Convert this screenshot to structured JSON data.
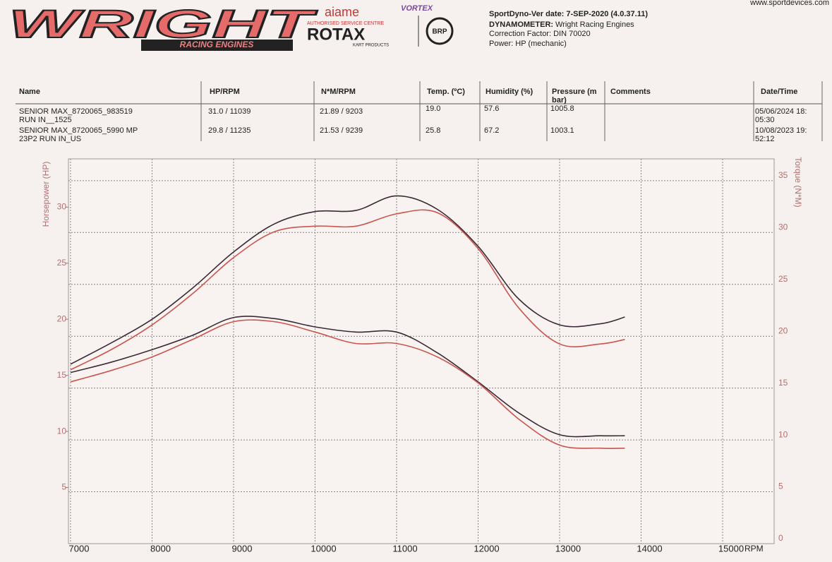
{
  "header": {
    "logo": {
      "brand": "WRIGHT",
      "tagline": "RACING ENGINES",
      "partner": "aiame",
      "partner2": "VORTEX",
      "centre": "AUTHORISED SERVICE CENTRE",
      "rotax": "ROTAX",
      "kart": "KART PRODUCTS",
      "brp": "BRP"
    },
    "info": {
      "version": "SportDyno-Ver date: 7-SEP-2020 (4.0.37.11)",
      "dyno_label": "DYNAMOMETER:",
      "dyno": "Wright Racing Engines",
      "correction": "Correction Factor: DIN 70020",
      "power": "Power: HP (mechanic)"
    },
    "website": "www.sportdevices.com"
  },
  "table": {
    "headers": [
      [
        "Name"
      ],
      [
        "HP/RPM"
      ],
      [
        "N*M/RPM"
      ],
      [
        "Temp. (ºC)"
      ],
      [
        "Humidity (%)"
      ],
      [
        "Pressure (m",
        "bar)"
      ],
      [
        "Comments"
      ],
      [
        "Date/Time"
      ]
    ],
    "rows": [
      {
        "name": [
          "SENIOR MAX_8720065_983519",
          "RUN IN__1525"
        ],
        "hp_rpm": "31.0 / 11039",
        "nm_rpm": "21.89 / 9203",
        "temp": "19.0",
        "humidity": "57.6",
        "pressure": "1005.8",
        "datetime": [
          "05/06/2024 18:",
          "05:30"
        ]
      },
      {
        "name": [
          "SENIOR MAX_8720065_5990 MP",
          "23P2 RUN IN_US"
        ],
        "hp_rpm": "29.8 / 11235",
        "nm_rpm": "21.53 / 9239",
        "temp": "25.8",
        "humidity": "67.2",
        "pressure": "1003.1",
        "datetime": [
          "10/08/2023 19:",
          "52:12"
        ]
      }
    ]
  },
  "chart_data": {
    "type": "line",
    "xlabel": "RPM",
    "ylabel": "Horsepower (HP)",
    "y2label": "Torque (N*M)",
    "x": [
      7000,
      7500,
      8000,
      8500,
      9000,
      9500,
      10000,
      10500,
      11000,
      11500,
      12000,
      12500,
      13000,
      13500,
      13800
    ],
    "xlim": [
      6974,
      15632
    ],
    "xticks": [
      7000,
      8000,
      9000,
      10000,
      11000,
      12000,
      13000,
      14000,
      15000
    ],
    "ylim": [
      0,
      34.3
    ],
    "yticks": [
      5,
      10,
      15,
      20,
      25,
      30
    ],
    "y2lim": [
      0,
      37.1
    ],
    "y2ticks": [
      0,
      5,
      10,
      15,
      20,
      25,
      30,
      35
    ],
    "grid": true,
    "series": [
      {
        "color": "#3b2a36",
        "values": [
          16.0,
          17.9,
          20.0,
          22.8,
          26.0,
          28.5,
          29.6,
          29.7,
          31.0,
          29.8,
          26.5,
          21.8,
          19.5,
          19.6,
          20.2
        ]
      },
      {
        "color": "#c9554d",
        "values": [
          15.5,
          17.3,
          19.5,
          22.3,
          25.5,
          27.8,
          28.3,
          28.3,
          29.4,
          29.5,
          26.3,
          21.0,
          17.8,
          17.8,
          18.2
        ]
      },
      {
        "color": "#3b2a36",
        "axis": "y2",
        "values": [
          16.5,
          17.5,
          18.7,
          20.1,
          21.8,
          21.7,
          20.9,
          20.4,
          20.4,
          18.4,
          15.6,
          12.6,
          10.5,
          10.4,
          10.4
        ]
      },
      {
        "color": "#c9554d",
        "axis": "y2",
        "values": [
          15.6,
          16.7,
          18.0,
          19.7,
          21.4,
          21.4,
          20.4,
          19.3,
          19.3,
          18.0,
          15.5,
          12.0,
          9.5,
          9.2,
          9.2
        ]
      }
    ]
  }
}
